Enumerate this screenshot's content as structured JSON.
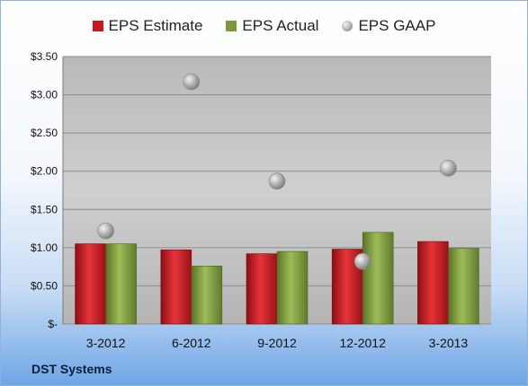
{
  "company": "DST Systems",
  "colors": {
    "estimate": "#c8171d",
    "actual": "#7a9a3a",
    "gaap": "#a8a8a8",
    "plot_bg": "#c4c4c4"
  },
  "chart_data": {
    "type": "bar",
    "categories": [
      "3-2012",
      "6-2012",
      "9-2012",
      "12-2012",
      "3-2013"
    ],
    "series": [
      {
        "name": "EPS Estimate",
        "type": "bar",
        "values": [
          1.05,
          0.97,
          0.92,
          0.98,
          1.08
        ]
      },
      {
        "name": "EPS Actual",
        "type": "bar",
        "values": [
          1.05,
          0.76,
          0.95,
          1.2,
          0.99
        ]
      },
      {
        "name": "EPS GAAP",
        "type": "bubble",
        "values": [
          1.22,
          3.17,
          1.87,
          0.82,
          2.04
        ]
      }
    ],
    "ylim": [
      0,
      3.5
    ],
    "yticks": [
      0,
      0.5,
      1.0,
      1.5,
      2.0,
      2.5,
      3.0,
      3.5
    ],
    "ytick_labels": [
      "$-",
      "$0.50",
      "$1.00",
      "$1.50",
      "$2.00",
      "$2.50",
      "$3.00",
      "$3.50"
    ],
    "grid": true,
    "legend_position": "top"
  }
}
